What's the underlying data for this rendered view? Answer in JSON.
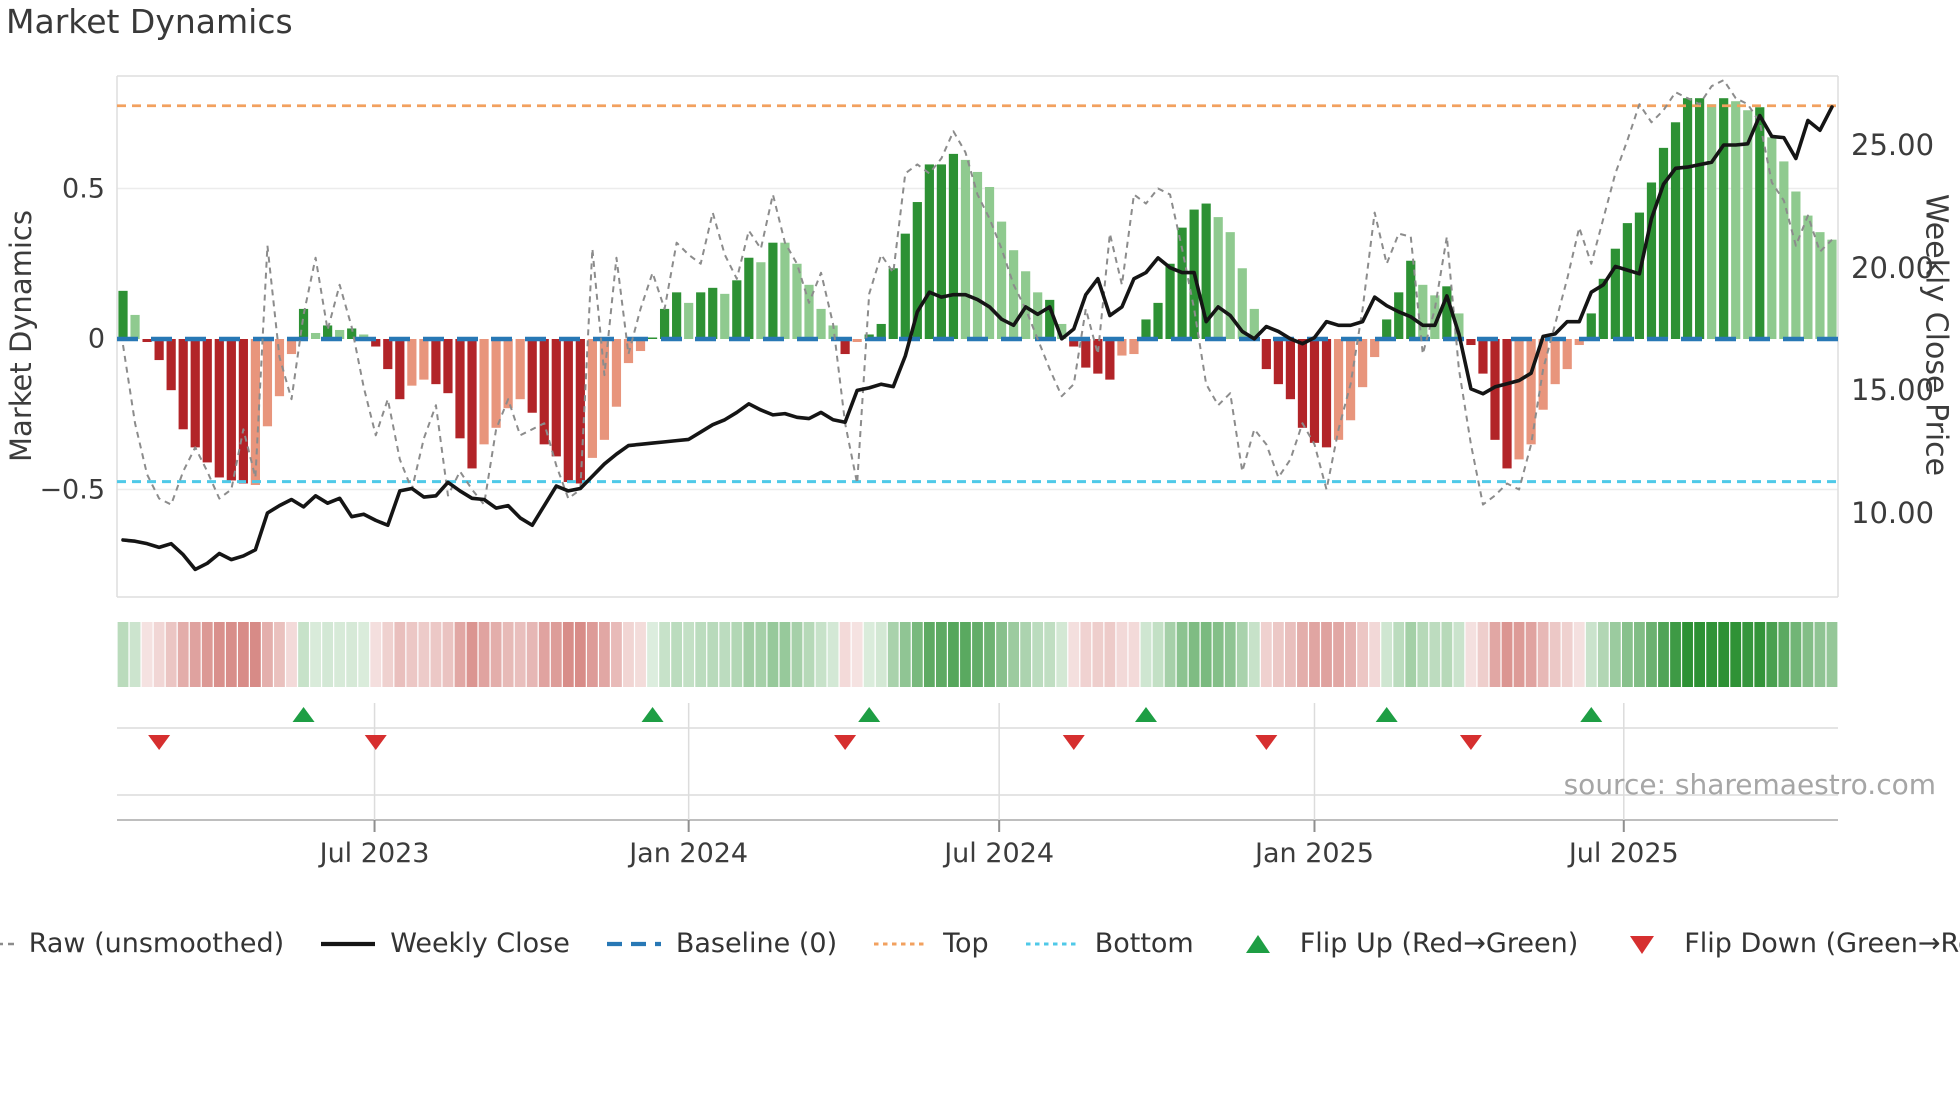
{
  "title": "Market Dynamics",
  "source": "source: sharemaestro.com",
  "left_axis": {
    "label": "Market Dynamics",
    "tick_labels": [
      "0.5",
      "0",
      "−0.5"
    ],
    "tick_values": [
      0.5,
      0,
      -0.5
    ]
  },
  "right_axis": {
    "label": "Weekly Close Price",
    "tick_labels": [
      "25.00",
      "20.00",
      "15.00",
      "10.00"
    ],
    "tick_values": [
      25,
      20,
      15,
      10
    ]
  },
  "x_axis": {
    "tick_labels": [
      "Jul 2023",
      "Jan 2024",
      "Jul 2024",
      "Jan 2025",
      "Jul 2025"
    ],
    "tick_week_index": [
      21.4,
      47.5,
      73.3,
      99.5,
      125.2
    ]
  },
  "colors": {
    "bar_dark_green": "#2D9134",
    "bar_light_green": "#8FCA8F",
    "bar_dark_red": "#B22428",
    "bar_salmon": "#E8957C",
    "baseline_blue": "#2878B5",
    "top_orange": "#F2A15F",
    "bottom_cyan": "#4FC9E8",
    "raw_gray": "#8C8C8C",
    "price_black": "#151515",
    "flip_up_green": "#1E9E44",
    "flip_down_red": "#D62F2F",
    "grid": "#ECECEC",
    "spine": "#DEDEDE",
    "marker_grid": "#DCDCDC",
    "marker_axis": "#BEBEBE"
  },
  "legend": [
    {
      "label": "Raw (unsmoothed)",
      "swatch": "dashed-line",
      "color": "#8C8C8C"
    },
    {
      "label": "Weekly Close",
      "swatch": "solid-line",
      "color": "#151515"
    },
    {
      "label": "Baseline (0)",
      "swatch": "long-dash",
      "color": "#2878B5"
    },
    {
      "label": "Top",
      "swatch": "dotted-line",
      "color": "#F2A15F"
    },
    {
      "label": "Bottom",
      "swatch": "dotted-line",
      "color": "#4FC9E8"
    },
    {
      "label": "Flip Up (Red→Green)",
      "swatch": "triangle-up",
      "color": "#1E9E44"
    },
    {
      "label": "Flip Down (Green→Red)",
      "swatch": "triangle-down",
      "color": "#D62F2F"
    }
  ],
  "chart_data": {
    "type": "bar",
    "subtype": "combo-oscillator-price",
    "weeks": 143,
    "left_ylim": [
      -0.86,
      0.88
    ],
    "right_ylim": [
      6.6,
      27.9
    ],
    "grid": true,
    "legend_position": "bottom",
    "baseline": 0,
    "top_band": 0.775,
    "bottom_band": -0.474,
    "series": [
      {
        "name": "Market Dynamics bars",
        "type": "bar",
        "axis": "left",
        "color_codes": "GgRRRRRRRRRrrrrGgGgGgRRRrrRRRRrrrrRRRRRrrrrrGGGgGGgGGgGgggggRrGGGGGGGGgggggggGgRRRRrrGGGGGGggggRRRRRRrrrrGGGggGgRRRRrrrrrrGGGGGGGGGGgGggGgggggg",
        "values": [
          0.16,
          0.08,
          -0.01,
          -0.07,
          -0.17,
          -0.3,
          -0.36,
          -0.41,
          -0.46,
          -0.47,
          -0.48,
          -0.485,
          -0.29,
          -0.19,
          -0.05,
          0.1,
          0.02,
          0.045,
          0.03,
          0.035,
          0.015,
          -0.025,
          -0.1,
          -0.2,
          -0.155,
          -0.135,
          -0.15,
          -0.18,
          -0.33,
          -0.43,
          -0.35,
          -0.295,
          -0.23,
          -0.2,
          -0.245,
          -0.35,
          -0.39,
          -0.475,
          -0.48,
          -0.395,
          -0.335,
          -0.225,
          -0.08,
          -0.04,
          0.005,
          0.1,
          0.155,
          0.12,
          0.155,
          0.17,
          0.15,
          0.195,
          0.27,
          0.255,
          0.32,
          0.32,
          0.25,
          0.18,
          0.1,
          0.045,
          -0.05,
          -0.01,
          0.015,
          0.05,
          0.235,
          0.35,
          0.455,
          0.58,
          0.58,
          0.615,
          0.595,
          0.555,
          0.505,
          0.39,
          0.295,
          0.225,
          0.155,
          0.13,
          0.05,
          -0.025,
          -0.095,
          -0.115,
          -0.135,
          -0.055,
          -0.05,
          0.065,
          0.12,
          0.25,
          0.37,
          0.43,
          0.45,
          0.405,
          0.355,
          0.235,
          0.1,
          -0.1,
          -0.15,
          -0.2,
          -0.295,
          -0.345,
          -0.36,
          -0.335,
          -0.27,
          -0.16,
          -0.06,
          0.065,
          0.155,
          0.26,
          0.18,
          0.145,
          0.175,
          0.085,
          -0.02,
          -0.115,
          -0.335,
          -0.43,
          -0.4,
          -0.35,
          -0.235,
          -0.15,
          -0.1,
          -0.02,
          0.085,
          0.2,
          0.3,
          0.385,
          0.42,
          0.52,
          0.635,
          0.72,
          0.8,
          0.8,
          0.78,
          0.8,
          0.79,
          0.76,
          0.77,
          0.67,
          0.59,
          0.49,
          0.41,
          0.355,
          0.33
        ]
      },
      {
        "name": "Raw (unsmoothed)",
        "type": "line",
        "axis": "left",
        "values": [
          -0.02,
          -0.28,
          -0.45,
          -0.53,
          -0.55,
          -0.44,
          -0.36,
          -0.44,
          -0.53,
          -0.5,
          -0.3,
          -0.46,
          0.31,
          -0.06,
          -0.2,
          0.08,
          0.27,
          0.03,
          0.18,
          0.04,
          -0.16,
          -0.32,
          -0.2,
          -0.4,
          -0.5,
          -0.33,
          -0.22,
          -0.52,
          -0.44,
          -0.5,
          -0.55,
          -0.3,
          -0.2,
          -0.32,
          -0.3,
          -0.28,
          -0.42,
          -0.53,
          -0.5,
          0.3,
          -0.12,
          0.27,
          -0.05,
          0.1,
          0.22,
          0.1,
          0.32,
          0.28,
          0.25,
          0.42,
          0.28,
          0.2,
          0.36,
          0.3,
          0.48,
          0.32,
          0.25,
          0.12,
          0.22,
          0.05,
          -0.28,
          -0.48,
          0.15,
          0.28,
          0.22,
          0.55,
          0.58,
          0.55,
          0.6,
          0.69,
          0.62,
          0.48,
          0.4,
          0.3,
          0.18,
          0.1,
          0.0,
          -0.1,
          -0.19,
          -0.15,
          0.1,
          -0.05,
          0.35,
          0.18,
          0.48,
          0.45,
          0.5,
          0.48,
          0.3,
          0.1,
          -0.15,
          -0.22,
          -0.18,
          -0.44,
          -0.3,
          -0.35,
          -0.46,
          -0.4,
          -0.28,
          -0.35,
          -0.5,
          -0.3,
          -0.15,
          0.1,
          0.42,
          0.25,
          0.35,
          0.34,
          -0.05,
          0.1,
          0.34,
          -0.1,
          -0.35,
          -0.55,
          -0.52,
          -0.48,
          -0.5,
          -0.35,
          -0.1,
          0.05,
          0.2,
          0.37,
          0.25,
          0.4,
          0.55,
          0.66,
          0.78,
          0.72,
          0.76,
          0.82,
          0.8,
          0.78,
          0.84,
          0.86,
          0.8,
          0.78,
          0.72,
          0.52,
          0.46,
          0.31,
          0.41,
          0.29,
          0.33
        ]
      },
      {
        "name": "Weekly Close",
        "type": "line",
        "axis": "right",
        "values": [
          8.9,
          8.85,
          8.75,
          8.6,
          8.75,
          8.3,
          7.7,
          7.95,
          8.35,
          8.1,
          8.25,
          8.5,
          10.0,
          10.3,
          10.55,
          10.25,
          10.7,
          10.4,
          10.6,
          9.85,
          9.95,
          9.7,
          9.5,
          10.9,
          11.0,
          10.65,
          10.7,
          11.25,
          10.9,
          10.6,
          10.55,
          10.2,
          10.3,
          9.8,
          9.5,
          10.3,
          11.1,
          10.9,
          11.0,
          11.5,
          12.0,
          12.4,
          12.75,
          12.8,
          12.85,
          12.9,
          12.95,
          13.0,
          13.3,
          13.6,
          13.8,
          14.1,
          14.45,
          14.2,
          14.0,
          14.05,
          13.9,
          13.85,
          14.1,
          13.8,
          13.7,
          15.0,
          15.1,
          15.25,
          15.15,
          16.4,
          18.2,
          19.0,
          18.8,
          18.9,
          18.9,
          18.7,
          18.4,
          17.9,
          17.65,
          18.4,
          18.1,
          18.4,
          17.1,
          17.5,
          18.9,
          19.55,
          18.05,
          18.4,
          19.55,
          19.8,
          20.4,
          20.0,
          19.8,
          19.8,
          17.8,
          18.4,
          18.05,
          17.4,
          17.1,
          17.6,
          17.4,
          17.1,
          16.9,
          17.15,
          17.8,
          17.65,
          17.65,
          17.8,
          18.8,
          18.45,
          18.2,
          18.0,
          17.65,
          17.65,
          18.85,
          17.3,
          15.06,
          14.86,
          15.14,
          15.27,
          15.4,
          15.7,
          17.2,
          17.3,
          17.8,
          17.8,
          19.0,
          19.3,
          20.05,
          19.9,
          19.75,
          22.0,
          23.4,
          24.05,
          24.1,
          24.2,
          24.3,
          25.0,
          25.0,
          25.05,
          26.2,
          25.35,
          25.3,
          24.45,
          26.0,
          25.6,
          26.55
        ]
      }
    ],
    "heatmap": "same values as bar series rendered as color strip",
    "flip_up_weeks": [
      15,
      44,
      62,
      85,
      105,
      122
    ],
    "flip_down_weeks": [
      3,
      21,
      60,
      79,
      95,
      112
    ]
  }
}
